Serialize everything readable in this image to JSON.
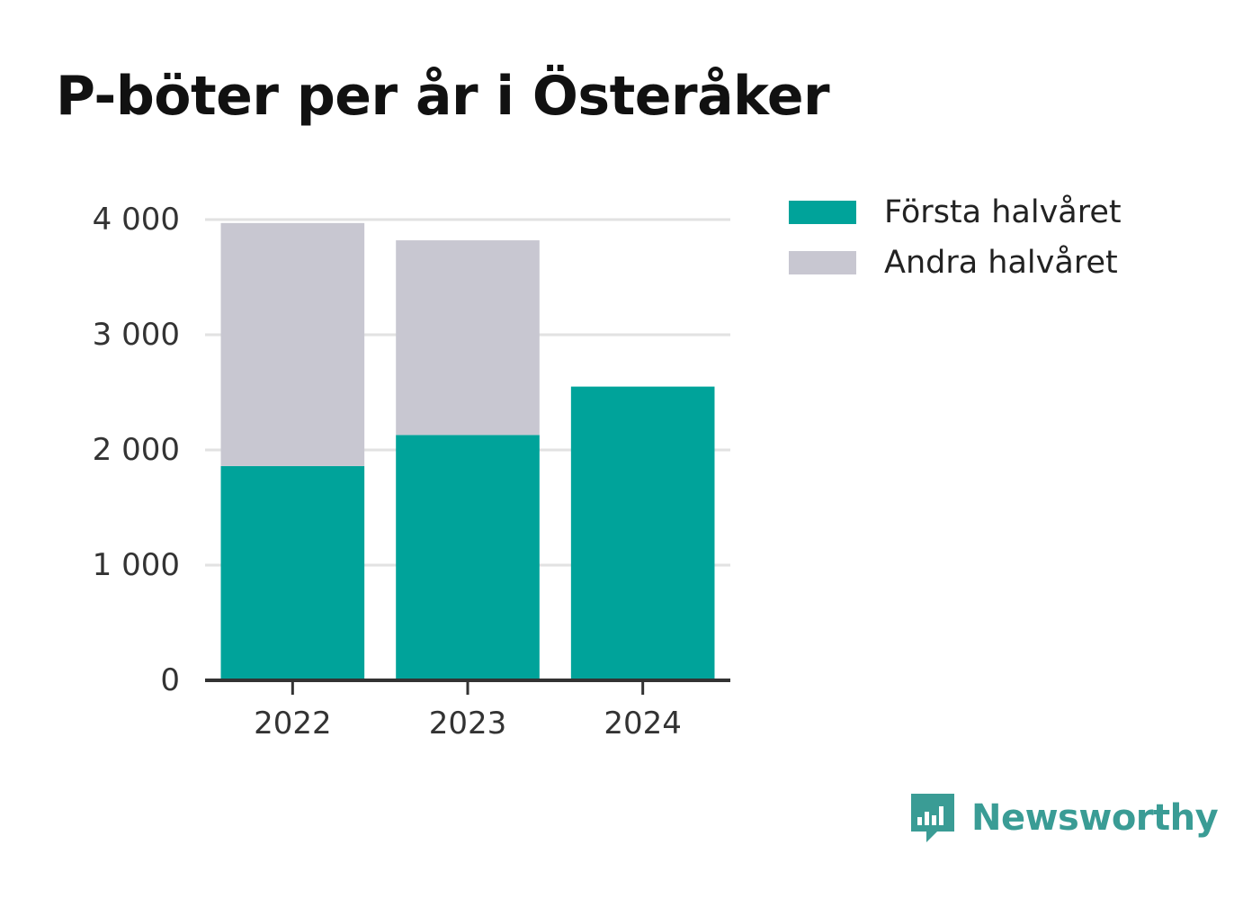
{
  "title": "P-böter per år i Österåker",
  "colors": {
    "first_half": "#00a39a",
    "second_half": "#c8c7d1",
    "grid": "#e2e2e2",
    "axis": "#333333",
    "brand": "#3a9c95"
  },
  "brand": {
    "name": "Newsworthy",
    "icon": "newsworthy-logo-icon"
  },
  "chart_data": {
    "type": "bar",
    "stacked": true,
    "categories": [
      "2022",
      "2023",
      "2024"
    ],
    "series": [
      {
        "name": "Första halvåret",
        "values": [
          1860,
          2130,
          2550
        ]
      },
      {
        "name": "Andra halvåret",
        "values": [
          2110,
          1690,
          0
        ]
      }
    ],
    "title": "P-böter per år i Österåker",
    "xlabel": "",
    "ylabel": "",
    "ylim": [
      0,
      4000
    ],
    "yticks": [
      0,
      1000,
      2000,
      3000,
      4000
    ],
    "ytick_labels": [
      "0",
      "1 000",
      "2 000",
      "3 000",
      "4 000"
    ],
    "grid": true,
    "legend": "top-right"
  }
}
